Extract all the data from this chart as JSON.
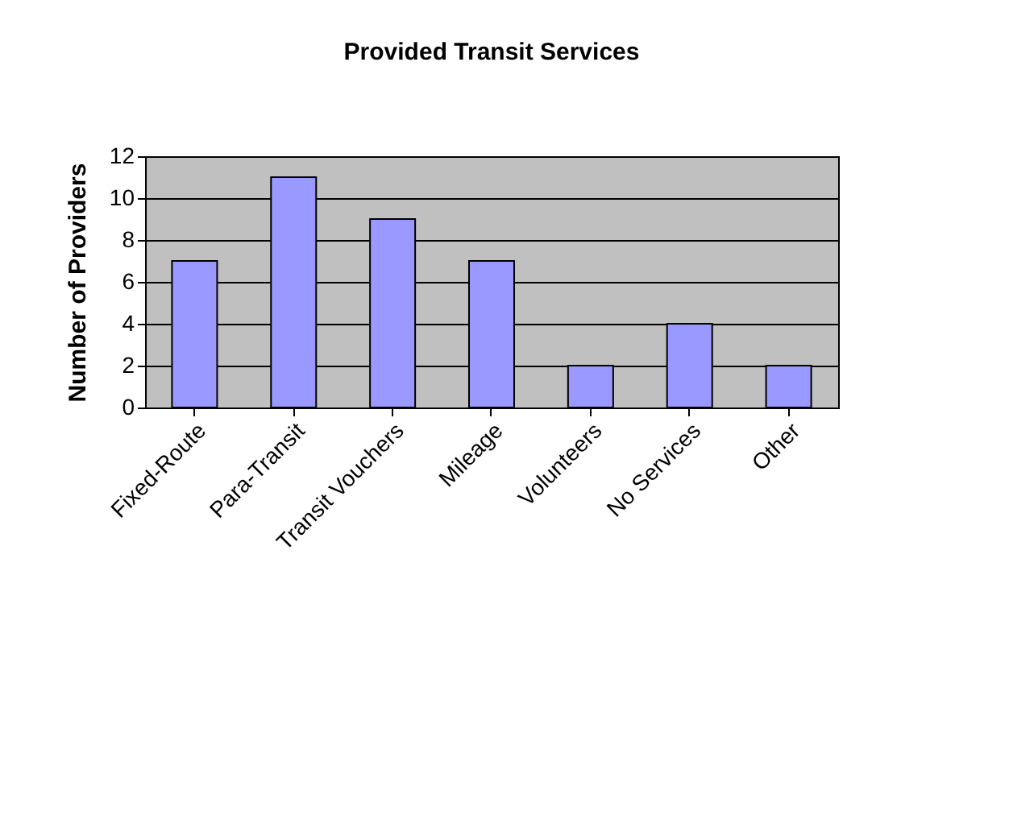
{
  "chart_data": {
    "type": "bar",
    "title": "Provided Transit Services",
    "ylabel": "Number of Providers",
    "categories": [
      "Fixed-Route",
      "Para-Transit",
      "Transit Vouchers",
      "Mileage",
      "Volunteers",
      "No Services",
      "Other"
    ],
    "values": [
      7,
      11,
      9,
      7,
      2,
      4,
      2
    ],
    "color": "#9999ff",
    "ylim": [
      0,
      12
    ],
    "yticks": [
      0,
      2,
      4,
      6,
      8,
      10,
      12
    ],
    "grid": "y"
  }
}
